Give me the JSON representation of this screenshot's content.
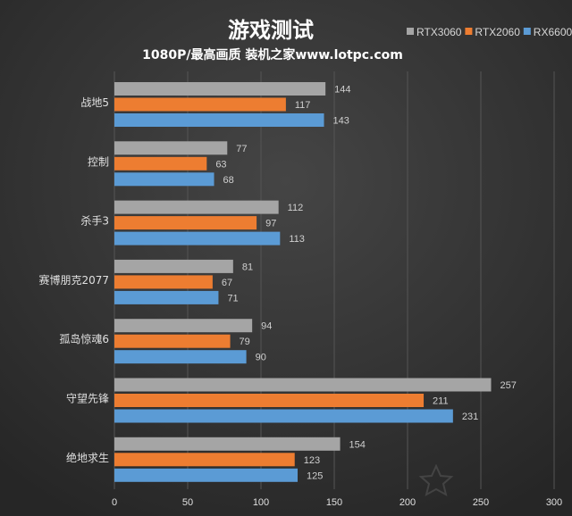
{
  "chart_data": {
    "type": "bar",
    "orientation": "horizontal",
    "title": "游戏测试",
    "subtitle": "1080P/最高画质  装机之家www.lotpc.com",
    "categories": [
      "战地5",
      "控制",
      "杀手3",
      "赛博朋克2077",
      "孤岛惊魂6",
      "守望先锋",
      "绝地求生"
    ],
    "series": [
      {
        "name": "RTX3060",
        "color": "#a5a5a5",
        "values": [
          144,
          77,
          112,
          81,
          94,
          257,
          154
        ]
      },
      {
        "name": "RTX2060",
        "color": "#ed7d31",
        "values": [
          117,
          63,
          97,
          67,
          79,
          211,
          123
        ]
      },
      {
        "name": "RX6600",
        "color": "#5b9bd5",
        "values": [
          143,
          68,
          113,
          71,
          90,
          231,
          125
        ]
      }
    ],
    "xlim": [
      0,
      300
    ],
    "xticks": [
      0,
      50,
      100,
      150,
      200,
      250,
      300
    ],
    "grid": true,
    "legend": "top-right",
    "watermark": "装机之家 www.lotpc.com"
  }
}
